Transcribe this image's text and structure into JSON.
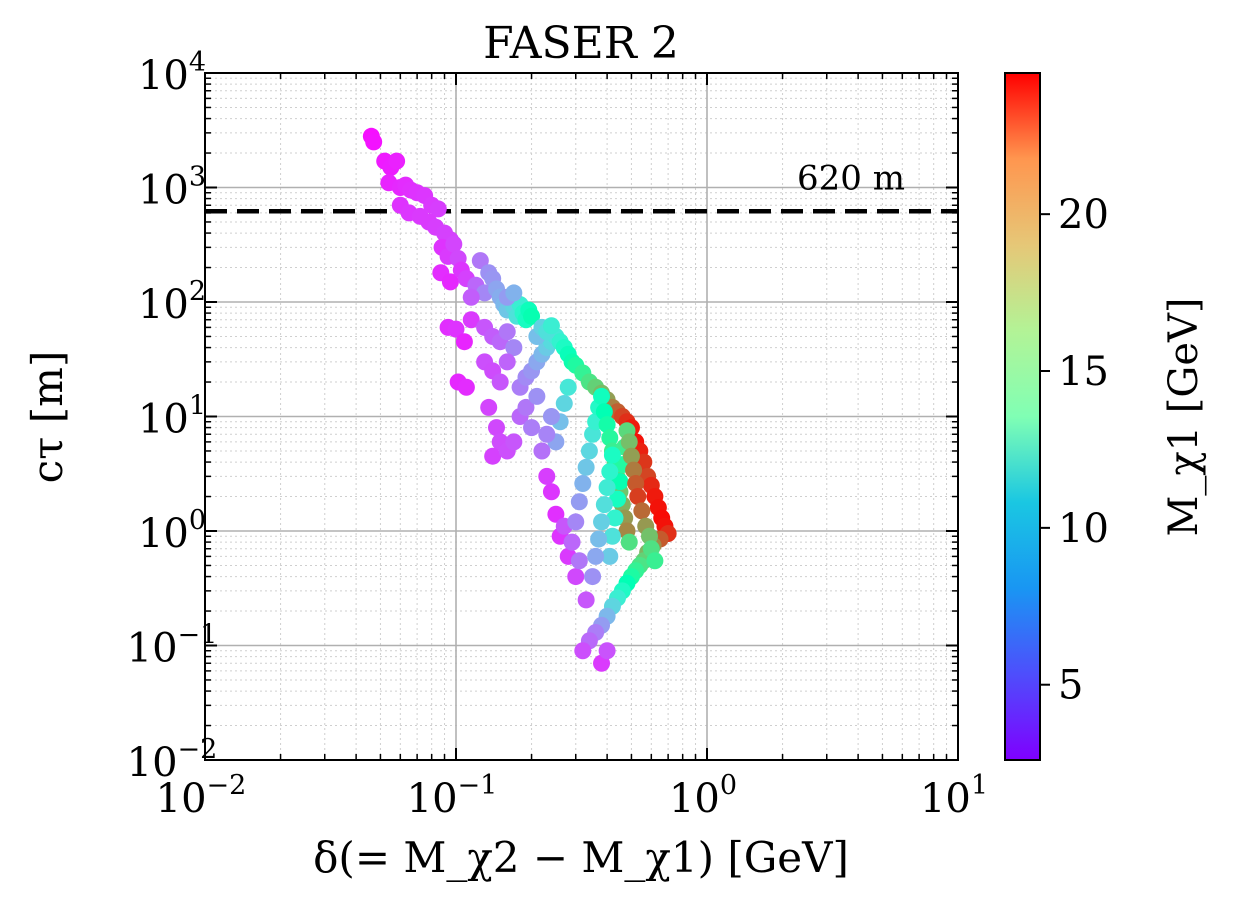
{
  "chart_data": {
    "type": "scatter",
    "title": "FASER 2",
    "xlabel": "δ(= M_χ2 − M_χ1) [GeV]",
    "ylabel": "cτ [m]",
    "xscale": "log",
    "yscale": "log",
    "xlim": [
      0.01,
      10
    ],
    "ylim": [
      0.01,
      10000
    ],
    "grid": true,
    "x_ticks": [
      {
        "base": "10",
        "exp": "−2"
      },
      {
        "base": "10",
        "exp": "−1"
      },
      {
        "base": "10",
        "exp": "0"
      },
      {
        "base": "10",
        "exp": "1"
      }
    ],
    "y_ticks": [
      {
        "base": "10",
        "exp": "−2"
      },
      {
        "base": "10",
        "exp": "−1"
      },
      {
        "base": "10",
        "exp": "0"
      },
      {
        "base": "10",
        "exp": "1"
      },
      {
        "base": "10",
        "exp": "2"
      },
      {
        "base": "10",
        "exp": "3"
      },
      {
        "base": "10",
        "exp": "4"
      }
    ],
    "reference_line": {
      "y": 620,
      "label": "620 m",
      "style": "dashed",
      "color": "#000000"
    },
    "colorbar": {
      "label": "M_χ1 [GeV]",
      "range": [
        2.6,
        24.5
      ],
      "ticks": [
        "5",
        "10",
        "15",
        "20"
      ],
      "tick_values": [
        5,
        10,
        15,
        20
      ],
      "colormap": "rainbow"
    },
    "points_note": "Each point: [delta_GeV, ctau_m, M_chi1_GeV] (approximate reading)",
    "points": [
      [
        0.046,
        2800,
        3.0
      ],
      [
        0.047,
        2500,
        3.1
      ],
      [
        0.052,
        1700,
        3.3
      ],
      [
        0.055,
        1500,
        3.4
      ],
      [
        0.058,
        1700,
        3.5
      ],
      [
        0.054,
        1100,
        3.6
      ],
      [
        0.06,
        1000,
        3.7
      ],
      [
        0.063,
        1050,
        3.8
      ],
      [
        0.066,
        950,
        3.9
      ],
      [
        0.07,
        900,
        4.0
      ],
      [
        0.075,
        850,
        4.1
      ],
      [
        0.08,
        700,
        4.2
      ],
      [
        0.085,
        650,
        4.3
      ],
      [
        0.06,
        700,
        4.0
      ],
      [
        0.065,
        600,
        4.1
      ],
      [
        0.072,
        560,
        4.2
      ],
      [
        0.078,
        500,
        4.2
      ],
      [
        0.083,
        450,
        4.3
      ],
      [
        0.09,
        400,
        4.4
      ],
      [
        0.095,
        350,
        4.4
      ],
      [
        0.088,
        300,
        4.0
      ],
      [
        0.093,
        250,
        4.2
      ],
      [
        0.098,
        320,
        4.5
      ],
      [
        0.102,
        240,
        4.6
      ],
      [
        0.087,
        180,
        3.8
      ],
      [
        0.095,
        150,
        3.7
      ],
      [
        0.105,
        190,
        4.1
      ],
      [
        0.11,
        160,
        4.4
      ],
      [
        0.093,
        60,
        3.9
      ],
      [
        0.1,
        58,
        4.0
      ],
      [
        0.108,
        45,
        3.6
      ],
      [
        0.115,
        70,
        4.2
      ],
      [
        0.102,
        20,
        3.7
      ],
      [
        0.11,
        18,
        3.8
      ],
      [
        0.12,
        140,
        5.5
      ],
      [
        0.125,
        230,
        6.0
      ],
      [
        0.13,
        120,
        6.5
      ],
      [
        0.135,
        180,
        6.8
      ],
      [
        0.14,
        160,
        7.0
      ],
      [
        0.145,
        130,
        7.5
      ],
      [
        0.15,
        110,
        7.8
      ],
      [
        0.155,
        95,
        8.2
      ],
      [
        0.16,
        85,
        8.8
      ],
      [
        0.17,
        90,
        9.5
      ],
      [
        0.175,
        75,
        10.2
      ],
      [
        0.18,
        95,
        11.0
      ],
      [
        0.185,
        80,
        11.8
      ],
      [
        0.19,
        70,
        12.5
      ],
      [
        0.195,
        85,
        13.0
      ],
      [
        0.2,
        75,
        13.8
      ],
      [
        0.13,
        60,
        5.0
      ],
      [
        0.14,
        50,
        5.2
      ],
      [
        0.15,
        45,
        5.5
      ],
      [
        0.16,
        55,
        6.0
      ],
      [
        0.17,
        40,
        6.5
      ],
      [
        0.13,
        30,
        4.8
      ],
      [
        0.14,
        25,
        4.7
      ],
      [
        0.15,
        20,
        5.0
      ],
      [
        0.16,
        30,
        5.4
      ],
      [
        0.135,
        12,
        4.5
      ],
      [
        0.145,
        8,
        4.6
      ],
      [
        0.15,
        6,
        4.7
      ],
      [
        0.14,
        4.5,
        4.4
      ],
      [
        0.16,
        5,
        4.8
      ],
      [
        0.17,
        6,
        5.0
      ],
      [
        0.18,
        10,
        5.5
      ],
      [
        0.19,
        12,
        6.0
      ],
      [
        0.2,
        8,
        6.2
      ],
      [
        0.21,
        15,
        6.8
      ],
      [
        0.18,
        18,
        6.2
      ],
      [
        0.19,
        22,
        6.6
      ],
      [
        0.2,
        25,
        7.0
      ],
      [
        0.21,
        30,
        7.6
      ],
      [
        0.22,
        35,
        8.2
      ],
      [
        0.23,
        40,
        9.0
      ],
      [
        0.24,
        45,
        9.8
      ],
      [
        0.25,
        50,
        10.6
      ],
      [
        0.26,
        45,
        11.4
      ],
      [
        0.27,
        40,
        12.3
      ],
      [
        0.28,
        35,
        13.1
      ],
      [
        0.29,
        30,
        14.0
      ],
      [
        0.3,
        28,
        14.9
      ],
      [
        0.32,
        24,
        15.8
      ],
      [
        0.34,
        20,
        16.8
      ],
      [
        0.36,
        18,
        17.8
      ],
      [
        0.38,
        16,
        18.8
      ],
      [
        0.4,
        14,
        19.8
      ],
      [
        0.42,
        12,
        20.8
      ],
      [
        0.44,
        11,
        21.8
      ],
      [
        0.46,
        10,
        22.6
      ],
      [
        0.48,
        9,
        23.2
      ],
      [
        0.5,
        8,
        23.8
      ],
      [
        0.52,
        6,
        24.0
      ],
      [
        0.54,
        5,
        23.6
      ],
      [
        0.56,
        4,
        23.0
      ],
      [
        0.58,
        3,
        22.6
      ],
      [
        0.6,
        2.5,
        23.4
      ],
      [
        0.62,
        2,
        23.8
      ],
      [
        0.64,
        1.6,
        24.0
      ],
      [
        0.66,
        1.3,
        24.2
      ],
      [
        0.68,
        1.1,
        24.0
      ],
      [
        0.7,
        0.95,
        23.2
      ],
      [
        0.65,
        0.85,
        22.0
      ],
      [
        0.61,
        0.75,
        20.5
      ],
      [
        0.58,
        0.65,
        19.0
      ],
      [
        0.56,
        0.55,
        17.8
      ],
      [
        0.54,
        0.5,
        16.8
      ],
      [
        0.52,
        0.45,
        15.8
      ],
      [
        0.5,
        0.4,
        14.8
      ],
      [
        0.48,
        0.35,
        13.5
      ],
      [
        0.46,
        0.3,
        12.2
      ],
      [
        0.44,
        0.26,
        11.0
      ],
      [
        0.42,
        0.22,
        9.5
      ],
      [
        0.4,
        0.18,
        8.2
      ],
      [
        0.38,
        0.15,
        7.2
      ],
      [
        0.36,
        0.13,
        6.2
      ],
      [
        0.34,
        0.11,
        5.6
      ],
      [
        0.32,
        0.09,
        4.8
      ],
      [
        0.38,
        0.07,
        4.2
      ],
      [
        0.4,
        0.09,
        4.9
      ],
      [
        0.33,
        0.25,
        5.0
      ],
      [
        0.3,
        0.4,
        4.6
      ],
      [
        0.28,
        0.6,
        4.2
      ],
      [
        0.26,
        0.9,
        4.0
      ],
      [
        0.25,
        1.4,
        3.9
      ],
      [
        0.24,
        2.2,
        4.1
      ],
      [
        0.23,
        3.0,
        4.3
      ],
      [
        0.27,
        1.1,
        5.0
      ],
      [
        0.29,
        0.8,
        5.5
      ],
      [
        0.31,
        0.55,
        6.0
      ],
      [
        0.3,
        1.2,
        6.5
      ],
      [
        0.31,
        1.8,
        7.2
      ],
      [
        0.32,
        2.6,
        8.0
      ],
      [
        0.33,
        3.6,
        8.8
      ],
      [
        0.34,
        5.0,
        9.6
      ],
      [
        0.35,
        7.0,
        10.4
      ],
      [
        0.36,
        9.0,
        11.2
      ],
      [
        0.37,
        12,
        12.0
      ],
      [
        0.38,
        15,
        12.8
      ],
      [
        0.39,
        11,
        13.6
      ],
      [
        0.4,
        8.5,
        14.4
      ],
      [
        0.41,
        6.5,
        15.2
      ],
      [
        0.42,
        5.0,
        16.0
      ],
      [
        0.43,
        3.8,
        16.8
      ],
      [
        0.44,
        2.9,
        17.6
      ],
      [
        0.45,
        2.2,
        18.4
      ],
      [
        0.46,
        1.7,
        19.2
      ],
      [
        0.47,
        1.3,
        20.0
      ],
      [
        0.48,
        1.0,
        20.6
      ],
      [
        0.49,
        0.8,
        17.0
      ],
      [
        0.41,
        0.6,
        9.0
      ],
      [
        0.42,
        0.9,
        10.2
      ],
      [
        0.43,
        1.3,
        11.4
      ],
      [
        0.44,
        1.9,
        12.6
      ],
      [
        0.45,
        2.7,
        13.8
      ],
      [
        0.46,
        3.8,
        15.0
      ],
      [
        0.47,
        5.4,
        16.2
      ],
      [
        0.48,
        7.5,
        17.4
      ],
      [
        0.49,
        6.0,
        18.6
      ],
      [
        0.5,
        4.5,
        19.8
      ],
      [
        0.51,
        3.4,
        21.0
      ],
      [
        0.52,
        2.6,
        22.0
      ],
      [
        0.53,
        2.0,
        22.8
      ],
      [
        0.55,
        1.5,
        21.5
      ],
      [
        0.57,
        1.1,
        20.0
      ],
      [
        0.59,
        0.9,
        18.5
      ],
      [
        0.6,
        0.7,
        17.0
      ],
      [
        0.62,
        0.55,
        16.0
      ],
      [
        0.25,
        6,
        7.5
      ],
      [
        0.26,
        9,
        8.5
      ],
      [
        0.27,
        13,
        9.5
      ],
      [
        0.28,
        18,
        10.5
      ],
      [
        0.22,
        5,
        5.8
      ],
      [
        0.23,
        7,
        6.4
      ],
      [
        0.24,
        10,
        7.0
      ],
      [
        0.35,
        0.4,
        6.8
      ],
      [
        0.36,
        0.6,
        7.6
      ],
      [
        0.37,
        0.85,
        8.4
      ],
      [
        0.38,
        1.2,
        9.2
      ],
      [
        0.39,
        1.7,
        10.0
      ],
      [
        0.4,
        2.4,
        10.8
      ],
      [
        0.41,
        3.3,
        11.6
      ],
      [
        0.42,
        4.6,
        12.4
      ],
      [
        0.21,
        50,
        8.5
      ],
      [
        0.22,
        60,
        9.3
      ],
      [
        0.23,
        55,
        10.1
      ],
      [
        0.24,
        62,
        11.0
      ],
      [
        0.16,
        110,
        7.2
      ],
      [
        0.17,
        120,
        8.0
      ],
      [
        0.115,
        110,
        5.2
      ]
    ]
  }
}
